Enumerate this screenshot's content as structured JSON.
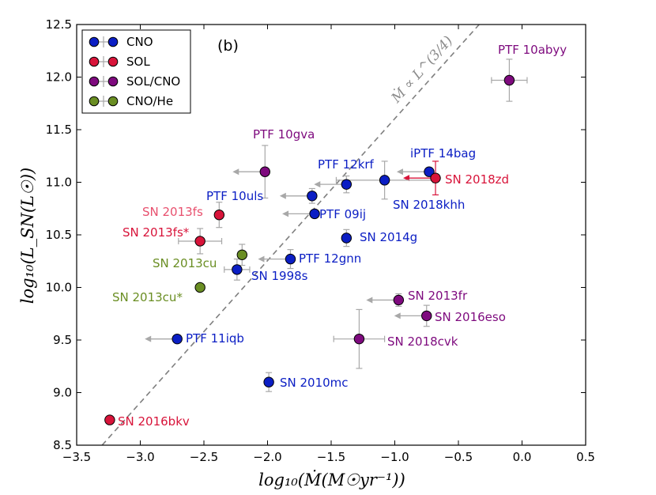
{
  "chart_data": {
    "type": "scatter",
    "panel_label": "(b)",
    "xlabel": "log₁₀(Ṁ(M☉yr⁻¹))",
    "ylabel": "log₁₀(L_SN(L☉))",
    "xlim": [
      -3.5,
      0.5
    ],
    "ylim": [
      8.5,
      12.5
    ],
    "xticks": [
      "−3.5",
      "−3.0",
      "−2.5",
      "−2.0",
      "−1.5",
      "−1.0",
      "−0.5",
      "0.0",
      "0.5"
    ],
    "yticks": [
      "8.5",
      "9.0",
      "9.5",
      "10.0",
      "10.5",
      "11.0",
      "11.5",
      "12.0",
      "12.5"
    ],
    "trend_line": {
      "label": "Ṁ ∝ L^(3/4)",
      "from": [
        -3.3,
        8.5
      ],
      "to": [
        -1.3,
        11.2
      ]
    },
    "legend": [
      {
        "name": "CNO",
        "color": "#0b1ec4"
      },
      {
        "name": "SOL",
        "color": "#d8143a"
      },
      {
        "name": "SOL/CNO",
        "color": "#7e0a7e"
      },
      {
        "name": "CNO/He",
        "color": "#6a8e23"
      }
    ],
    "points": [
      {
        "label": "PTF 10abyy",
        "group": "SOL/CNO",
        "x": -0.1,
        "y": 11.97,
        "xerr": 0.14,
        "yerr": 0.2,
        "label_color": "#7e0a7e"
      },
      {
        "label": "PTF 10gva",
        "group": "SOL/CNO",
        "x": -2.02,
        "y": 11.1,
        "yerr": 0.25,
        "upper_limit_x": true,
        "label_color": "#7e0a7e"
      },
      {
        "label": "PTF 12krf",
        "group": "CNO",
        "x": -1.38,
        "y": 10.98,
        "yerr": 0.08,
        "upper_limit_x": true,
        "label_color": "#0b1ec4"
      },
      {
        "label": "iPTF 14bag",
        "group": "CNO",
        "x": -0.73,
        "y": 11.1,
        "upper_limit_x": true,
        "label_color": "#0b1ec4"
      },
      {
        "label": "SN 2018zd",
        "group": "SOL",
        "x": -0.68,
        "y": 11.04,
        "yerr": 0.16,
        "upper_limit_x": true,
        "label_color": "#d8143a"
      },
      {
        "label": "SN 2018khh",
        "group": "CNO",
        "x": -1.08,
        "y": 11.02,
        "xerr": 0.38,
        "yerr": 0.18,
        "label_color": "#0b1ec4"
      },
      {
        "label": "PTF 10uls",
        "group": "CNO",
        "x": -1.65,
        "y": 10.87,
        "yerr": 0.07,
        "upper_limit_x": true,
        "label_color": "#0b1ec4"
      },
      {
        "label": "PTF 09ij",
        "group": "CNO",
        "x": -1.63,
        "y": 10.7,
        "upper_limit_x": true,
        "label_color": "#0b1ec4"
      },
      {
        "label": "SN 2013fs",
        "group": "SOL",
        "x": -2.38,
        "y": 10.69,
        "yerr": 0.12,
        "label_color": "#e8506e"
      },
      {
        "label": "SN 2014g",
        "group": "CNO",
        "x": -1.38,
        "y": 10.47,
        "yerr": 0.08,
        "label_color": "#0b1ec4"
      },
      {
        "label": "SN 2013fs*",
        "group": "SOL",
        "x": -2.53,
        "y": 10.44,
        "xerr": 0.17,
        "yerr": 0.12,
        "label_color": "#d8143a"
      },
      {
        "label": "SN 2013cu",
        "group": "CNO/He",
        "x": -2.2,
        "y": 10.31,
        "yerr": 0.1,
        "label_color": "#6a8e23"
      },
      {
        "label": "PTF 12gnn",
        "group": "CNO",
        "x": -1.82,
        "y": 10.27,
        "yerr": 0.09,
        "upper_limit_x": true,
        "label_color": "#0b1ec4"
      },
      {
        "label": "SN 1998s",
        "group": "CNO",
        "x": -2.24,
        "y": 10.17,
        "xerr": 0.1,
        "yerr": 0.1,
        "label_color": "#0b1ec4"
      },
      {
        "label": "SN 2013cu*",
        "group": "CNO/He",
        "x": -2.53,
        "y": 10.0,
        "label_color": "#6a8e23"
      },
      {
        "label": "SN 2013fr",
        "group": "SOL/CNO",
        "x": -0.97,
        "y": 9.88,
        "yerr": 0.06,
        "upper_limit_x": true,
        "label_color": "#7e0a7e"
      },
      {
        "label": "SN 2016eso",
        "group": "SOL/CNO",
        "x": -0.75,
        "y": 9.73,
        "yerr": 0.1,
        "upper_limit_x": true,
        "label_color": "#7e0a7e"
      },
      {
        "label": "SN 2018cvk",
        "group": "SOL/CNO",
        "x": -1.28,
        "y": 9.51,
        "xerr": 0.2,
        "yerr": 0.28,
        "label_color": "#7e0a7e"
      },
      {
        "label": "PTF 11iqb",
        "group": "CNO",
        "x": -2.71,
        "y": 9.51,
        "upper_limit_x": true,
        "label_color": "#0b1ec4"
      },
      {
        "label": "SN 2010mc",
        "group": "CNO",
        "x": -1.99,
        "y": 9.1,
        "yerr": 0.09,
        "label_color": "#0b1ec4"
      },
      {
        "label": "SN 2016bkv",
        "group": "SOL",
        "x": -3.24,
        "y": 8.74,
        "label_color": "#d8143a"
      }
    ]
  }
}
